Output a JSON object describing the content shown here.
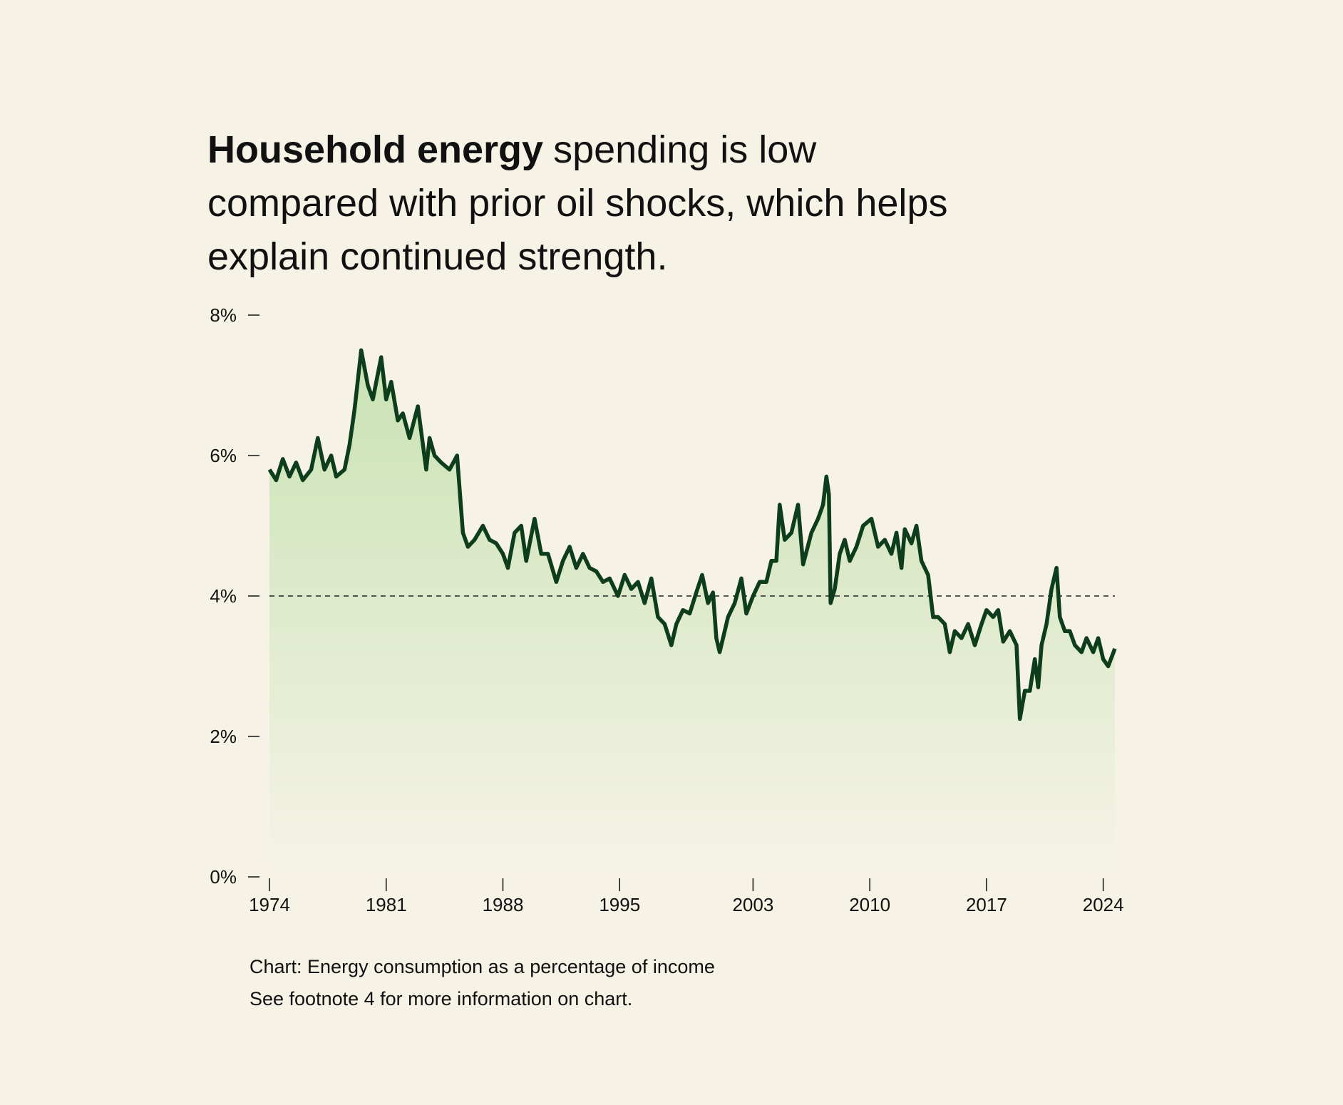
{
  "chart_data": {
    "type": "line",
    "title_bold": "Household energy",
    "title_lines": [
      "spending is low",
      "compared with prior oil shocks, which helps",
      "explain continued strength."
    ],
    "notes": [
      "Chart: Energy consumption as a percentage of income",
      "See footnote 4 for more information on chart."
    ],
    "x": [
      1974.0,
      1974.4,
      1974.8,
      1975.2,
      1975.6,
      1976.0,
      1976.5,
      1976.9,
      1977.3,
      1977.7,
      1978.0,
      1978.5,
      1978.8,
      1979.1,
      1979.5,
      1979.9,
      1980.2,
      1980.7,
      1981.0,
      1981.3,
      1981.7,
      1982.0,
      1982.4,
      1982.9,
      1983.4,
      1983.6,
      1983.9,
      1984.3,
      1984.8,
      1985.25,
      1985.6,
      1985.9,
      1986.3,
      1986.8,
      1987.2,
      1987.6,
      1988.0,
      1988.3,
      1988.7,
      1989.1,
      1989.4,
      1989.9,
      1990.3,
      1990.7,
      1991.2,
      1991.6,
      1992.0,
      1992.4,
      1992.8,
      1993.2,
      1993.6,
      1994.0,
      1994.4,
      1994.9,
      1995.3,
      1995.7,
      1996.1,
      1996.5,
      1996.9,
      1997.3,
      1997.7,
      1998.1,
      1998.4,
      1998.8,
      1999.2,
      1999.6,
      1999.95,
      2000.3,
      2000.6,
      2000.8,
      2001.0,
      2001.5,
      2001.9,
      2002.3,
      2002.6,
      2003.0,
      2003.4,
      2003.8,
      2004.1,
      2004.4,
      2004.6,
      2004.9,
      2005.3,
      2005.7,
      2006.0,
      2006.5,
      2006.9,
      2007.2,
      2007.4,
      2007.55,
      2007.65,
      2007.9,
      2008.2,
      2008.5,
      2008.8,
      2009.2,
      2009.6,
      2010.1,
      2010.5,
      2010.9,
      2011.3,
      2011.6,
      2011.9,
      2012.1,
      2012.5,
      2012.8,
      2013.1,
      2013.5,
      2013.8,
      2014.1,
      2014.5,
      2014.8,
      2015.1,
      2015.5,
      2015.9,
      2016.3,
      2016.7,
      2017.0,
      2017.4,
      2017.7,
      2018.0,
      2018.4,
      2018.8,
      2019.0,
      2019.3,
      2019.6,
      2019.9,
      2020.1,
      2020.3,
      2020.6,
      2020.9,
      2021.2,
      2021.4,
      2021.7,
      2022.0,
      2022.3,
      2022.7,
      2023.0,
      2023.4,
      2023.7,
      2024.0,
      2024.3,
      2024.7
    ],
    "series": [
      {
        "color": "#0d3d1a",
        "values": [
          5.8,
          5.65,
          5.95,
          5.7,
          5.9,
          5.65,
          5.8,
          6.25,
          5.8,
          6.0,
          5.7,
          5.8,
          6.15,
          6.65,
          7.5,
          7.0,
          6.8,
          7.4,
          6.8,
          7.05,
          6.5,
          6.6,
          6.25,
          6.7,
          5.8,
          6.25,
          6.0,
          5.9,
          5.8,
          6.0,
          4.9,
          4.7,
          4.8,
          5.0,
          4.8,
          4.75,
          4.6,
          4.4,
          4.9,
          5.0,
          4.5,
          5.1,
          4.6,
          4.6,
          4.2,
          4.5,
          4.7,
          4.4,
          4.6,
          4.4,
          4.35,
          4.2,
          4.25,
          4.0,
          4.3,
          4.1,
          4.2,
          3.9,
          4.25,
          3.7,
          3.6,
          3.3,
          3.6,
          3.8,
          3.75,
          4.05,
          4.3,
          3.9,
          4.05,
          3.4,
          3.2,
          3.7,
          3.9,
          4.25,
          3.75,
          4.0,
          4.2,
          4.2,
          4.5,
          4.5,
          5.3,
          4.8,
          4.9,
          5.3,
          4.45,
          4.9,
          5.1,
          5.3,
          5.7,
          5.45,
          3.9,
          4.1,
          4.6,
          4.8,
          4.5,
          4.7,
          5.0,
          5.1,
          4.7,
          4.8,
          4.6,
          4.9,
          4.4,
          4.95,
          4.75,
          5.0,
          4.5,
          4.3,
          3.7,
          3.7,
          3.6,
          3.2,
          3.5,
          3.4,
          3.6,
          3.3,
          3.6,
          3.8,
          3.7,
          3.8,
          3.35,
          3.5,
          3.3,
          2.25,
          2.65,
          2.65,
          3.1,
          2.7,
          3.3,
          3.6,
          4.1,
          4.4,
          3.7,
          3.5,
          3.5,
          3.3,
          3.2,
          3.4,
          3.2,
          3.4,
          3.1,
          3.0,
          3.25
        ]
      }
    ],
    "fill_color": "#c9e2b4",
    "reference_line": 4,
    "xlim": [
      1974,
      2024.7
    ],
    "xticks": [
      1974,
      1981,
      1988,
      1995,
      2003,
      2010,
      2017,
      2024
    ],
    "ylim": [
      0,
      8
    ],
    "yticks": [
      {
        "value": 0,
        "label": "0%"
      },
      {
        "value": 2,
        "label": "2%"
      },
      {
        "value": 4,
        "label": "4%"
      },
      {
        "value": 6,
        "label": "6%"
      },
      {
        "value": 8,
        "label": "8%"
      }
    ]
  }
}
